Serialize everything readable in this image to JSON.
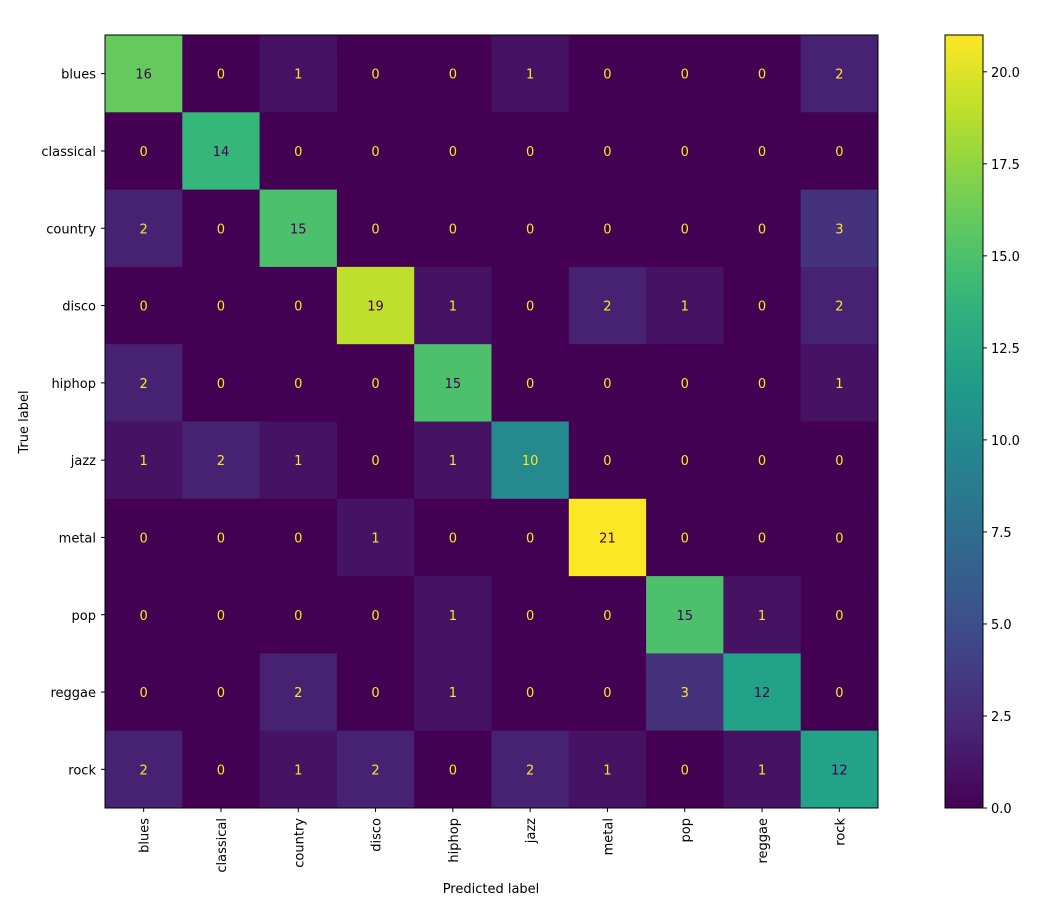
{
  "chart_data": {
    "type": "heatmap",
    "title": "",
    "xlabel": "Predicted label",
    "ylabel": "True label",
    "x_categories": [
      "blues",
      "classical",
      "country",
      "disco",
      "hiphop",
      "jazz",
      "metal",
      "pop",
      "reggae",
      "rock"
    ],
    "y_categories": [
      "blues",
      "classical",
      "country",
      "disco",
      "hiphop",
      "jazz",
      "metal",
      "pop",
      "reggae",
      "rock"
    ],
    "values": [
      [
        16,
        0,
        1,
        0,
        0,
        1,
        0,
        0,
        0,
        2
      ],
      [
        0,
        14,
        0,
        0,
        0,
        0,
        0,
        0,
        0,
        0
      ],
      [
        2,
        0,
        15,
        0,
        0,
        0,
        0,
        0,
        0,
        3
      ],
      [
        0,
        0,
        0,
        19,
        1,
        0,
        2,
        1,
        0,
        2
      ],
      [
        2,
        0,
        0,
        0,
        15,
        0,
        0,
        0,
        0,
        1
      ],
      [
        1,
        2,
        1,
        0,
        1,
        10,
        0,
        0,
        0,
        0
      ],
      [
        0,
        0,
        0,
        1,
        0,
        0,
        21,
        0,
        0,
        0
      ],
      [
        0,
        0,
        0,
        0,
        1,
        0,
        0,
        15,
        1,
        0
      ],
      [
        0,
        0,
        2,
        0,
        1,
        0,
        0,
        3,
        12,
        0
      ],
      [
        2,
        0,
        1,
        2,
        0,
        2,
        1,
        0,
        1,
        12
      ]
    ],
    "colormap": "viridis",
    "colorbar": {
      "range": [
        0,
        21
      ],
      "ticks": [
        "0.0",
        "2.5",
        "5.0",
        "7.5",
        "10.0",
        "12.5",
        "15.0",
        "17.5",
        "20.0"
      ],
      "placement": "right"
    },
    "text_colors": {
      "low": "#fde725",
      "high": "#440154"
    },
    "grid": false
  }
}
